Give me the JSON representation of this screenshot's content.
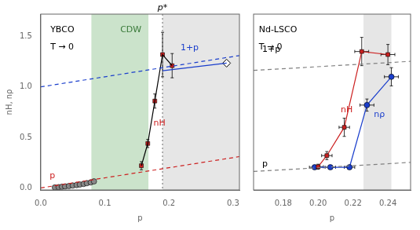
{
  "chart_data": [
    {
      "type": "scatter",
      "x_label": "p",
      "y_label": "nH, nρ",
      "xlim": [
        0,
        0.31
      ],
      "ylim": [
        -0.02,
        1.72
      ],
      "xticks": [
        {
          "value": 0,
          "label": "0.0"
        },
        0.1,
        0.2,
        0.3
      ],
      "yticks": [
        {
          "value": 0.0,
          "label": "0.0"
        },
        0.5,
        {
          "value": 1.0,
          "label": "1.0"
        },
        1.5
      ],
      "grid": false,
      "spans": [
        {
          "from": 0.079,
          "to": 0.168,
          "color": "#7DB87D"
        },
        {
          "from": 0.19,
          "to": 0.31,
          "color": "#C0C0C0"
        }
      ],
      "vlines": [
        {
          "x": 0.19,
          "color": "gray",
          "line_style": "dotted",
          "label": "p*"
        }
      ],
      "series": [
        {
          "color": "#CC2020",
          "line_style": "dashed",
          "marker": "none",
          "x": [
            0,
            0.31
          ],
          "values": [
            0,
            0.31
          ]
        },
        {
          "color": "#1A3ECC",
          "line_style": "dashed",
          "marker": "none",
          "x": [
            0,
            0.31
          ],
          "values": [
            1.0,
            1.31
          ]
        },
        {
          "color": "#888888",
          "line_style": "none",
          "marker": "circle",
          "x": [
            0.022,
            0.028,
            0.033,
            0.038,
            0.044,
            0.05,
            0.056,
            0.061,
            0.067,
            0.072,
            0.078,
            0.083
          ],
          "values": [
            0.005,
            0.008,
            0.012,
            0.015,
            0.019,
            0.024,
            0.029,
            0.034,
            0.04,
            0.047,
            0.055,
            0.065
          ]
        },
        {
          "color": "black",
          "line_style": "solid",
          "marker": "none",
          "x": [
            0.157,
            0.167,
            0.178,
            0.19,
            0.205
          ],
          "values": [
            0.22,
            0.44,
            0.86,
            1.32,
            1.21
          ]
        },
        {
          "color": "#CC2020",
          "line_style": "none",
          "marker": "square",
          "x": [
            0.157,
            0.167,
            0.178,
            0.19,
            0.205
          ],
          "values": [
            0.22,
            0.44,
            0.86,
            1.32,
            1.21
          ],
          "y_errors": [
            0.04,
            0.04,
            0.07,
            0.22,
            0.12
          ]
        },
        {
          "color": "#1A3ECC",
          "line_style": "solid",
          "marker": "none",
          "x": [
            0.19,
            0.29
          ],
          "values": [
            1.16,
            1.235
          ]
        },
        {
          "color": "white",
          "line_style": "none",
          "marker": "diamond",
          "x": [
            0.29
          ],
          "values": [
            1.235
          ]
        }
      ],
      "annotations": [
        {
          "text": "nH",
          "x": 0.176,
          "y": 0.62,
          "color": "#CC2020"
        },
        {
          "text": "p",
          "x": 0.014,
          "y": 0.1,
          "color": "#CC2020"
        },
        {
          "text": "1+p",
          "x": 0.218,
          "y": 1.36,
          "color": "#1A3ECC"
        },
        {
          "text": "YBCO",
          "x": 0.015,
          "y": 1.54,
          "color": "black"
        },
        {
          "text": "T → 0",
          "x": 0.015,
          "y": 1.37,
          "color": "black"
        },
        {
          "text": "CDW",
          "x": 0.124,
          "y": 1.54,
          "color": "#3A7A3A"
        }
      ]
    },
    {
      "type": "scatter",
      "x_label": "p",
      "xlim": [
        0.163,
        0.253
      ],
      "ylim": [
        -0.02,
        1.72
      ],
      "xticks": [
        0.18,
        {
          "value": 0.2,
          "label": "0.20"
        },
        0.22,
        0.24
      ],
      "tick_labels": "x",
      "grid": false,
      "spans": [
        {
          "from": 0.226,
          "to": 0.242,
          "color": "#C0C0C0"
        }
      ],
      "series": [
        {
          "color": "gray",
          "line_style": "dashed",
          "marker": "none",
          "x": [
            0.163,
            0.253
          ],
          "values": [
            0.163,
            0.253
          ]
        },
        {
          "color": "gray",
          "line_style": "dashed",
          "marker": "none",
          "x": [
            0.163,
            0.253
          ],
          "values": [
            1.163,
            1.253
          ]
        },
        {
          "color": "#CC2020",
          "line_style": "solid",
          "marker": "square",
          "x": [
            0.2,
            0.205,
            0.215,
            0.225,
            0.24
          ],
          "values": [
            0.21,
            0.32,
            0.6,
            1.35,
            1.32
          ],
          "y_errors": [
            0.025,
            0.04,
            0.09,
            0.14,
            0.1
          ],
          "x_errors": [
            0.003,
            0.003,
            0.003,
            0.004,
            0.004
          ]
        },
        {
          "color": "#1A3ECC",
          "line_style": "solid",
          "marker": "circle",
          "x": [
            0.198,
            0.207,
            0.218,
            0.228,
            0.242
          ],
          "values": [
            0.205,
            0.205,
            0.205,
            0.82,
            1.1
          ],
          "y_errors": [
            0.02,
            0.02,
            0.02,
            0.06,
            0.09
          ],
          "x_errors": [
            0.003,
            0.003,
            0.003,
            0.004,
            0.004
          ]
        }
      ],
      "annotations": [
        {
          "text": "nH",
          "x": 0.213,
          "y": 0.75,
          "color": "#CC2020"
        },
        {
          "text": "nρ",
          "x": 0.232,
          "y": 0.7,
          "color": "#1A3ECC"
        },
        {
          "text": "p",
          "x": 0.168,
          "y": 0.215,
          "color": "black"
        },
        {
          "text": "1+p",
          "x": 0.168,
          "y": 1.35,
          "color": "black"
        },
        {
          "text": "Nd-LSCO",
          "x": 0.166,
          "y": 1.54,
          "color": "black"
        },
        {
          "text": "T → 0",
          "x": 0.166,
          "y": 1.37,
          "color": "black"
        }
      ]
    }
  ]
}
